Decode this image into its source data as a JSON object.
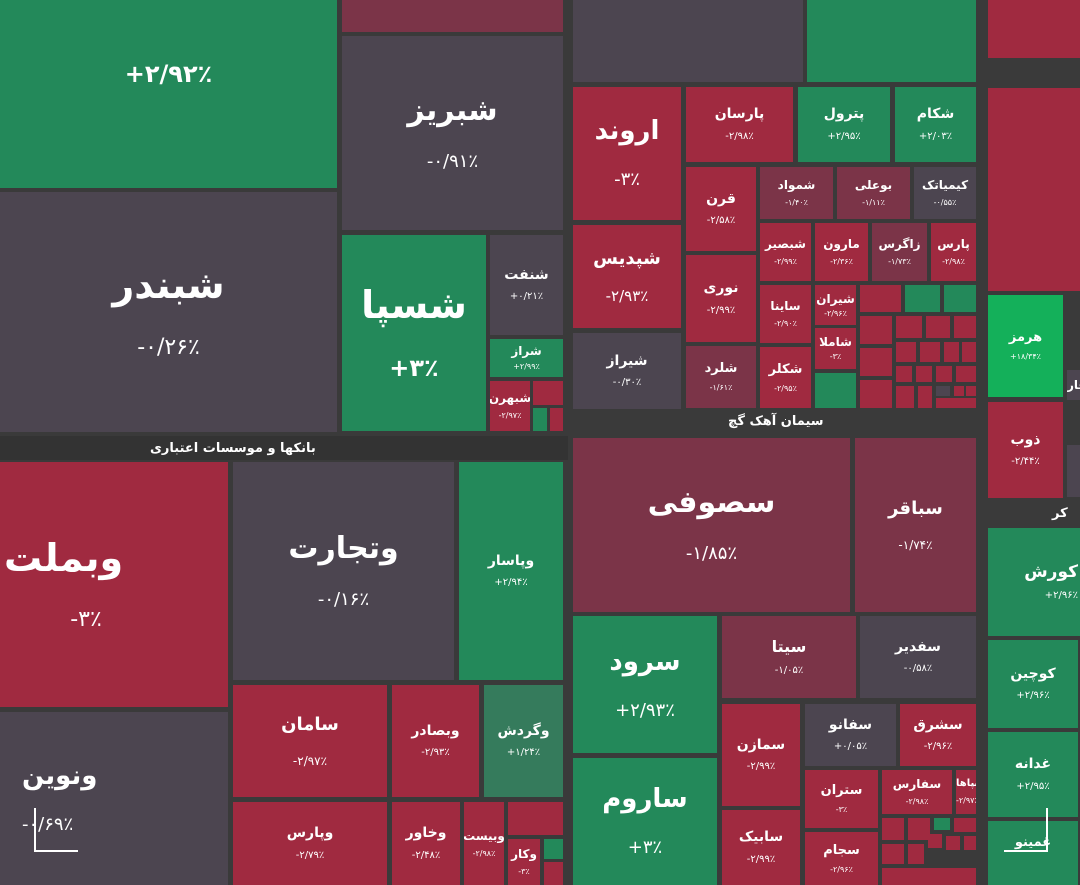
{
  "sectors": {
    "banks": "بانکها و موسسات اعتباری",
    "cement": "سیمان آهک گچ",
    "cropped_right": "کر"
  },
  "top_left_pct": "+۲/۹۲٪",
  "tiles": {
    "shabriz": {
      "name": "شبریز",
      "pct": "-۰/۹۱٪"
    },
    "shabandar": {
      "name": "شبندر",
      "pct": "-۰/۲۶٪"
    },
    "shespa": {
      "name": "شسپا",
      "pct": "+۳٪"
    },
    "shenaft": {
      "name": "شنفت",
      "pct": "+۰/۲۱٪"
    },
    "sheraz": {
      "name": "شراز",
      "pct": "+۲/۹۹٪"
    },
    "shebahran": {
      "name": "شبهرن",
      "pct": "-۲/۹۷٪"
    },
    "arvand": {
      "name": "اروند",
      "pct": "-۳٪"
    },
    "parsan": {
      "name": "پارسان",
      "pct": "-۲/۹۸٪"
    },
    "petrol": {
      "name": "پترول",
      "pct": "+۲/۹۵٪"
    },
    "shekam": {
      "name": "شکام",
      "pct": "+۲/۰۳٪"
    },
    "qorn": {
      "name": "قرن",
      "pct": "-۲/۵۸٪"
    },
    "shamvad": {
      "name": "شمواد",
      "pct": "-۱/۴۰٪"
    },
    "bouali": {
      "name": "بوعلی",
      "pct": "-۱/۱۱٪"
    },
    "kimiatak": {
      "name": "کیمیاتک",
      "pct": "-۰/۵۵٪"
    },
    "shepdis": {
      "name": "شپدیس",
      "pct": "-۲/۹۳٪"
    },
    "shebsir": {
      "name": "شبصیر",
      "pct": "-۲/۹۹٪"
    },
    "maroon": {
      "name": "مارون",
      "pct": "-۲/۳۶٪"
    },
    "zagros": {
      "name": "زاگرس",
      "pct": "-۱/۷۳٪"
    },
    "pars": {
      "name": "پارس",
      "pct": "-۲/۹۸٪"
    },
    "nouri": {
      "name": "نوری",
      "pct": "-۲/۹۹٪"
    },
    "saina": {
      "name": "ساینا",
      "pct": "-۲/۹۰٪"
    },
    "shiran": {
      "name": "شیران",
      "pct": "-۲/۹۶٪"
    },
    "shamla": {
      "name": "شاملا",
      "pct": "-۳٪"
    },
    "shiraz": {
      "name": "شیراز",
      "pct": "-۰/۳۰٪"
    },
    "sharad": {
      "name": "شلرد",
      "pct": "-۱/۶۱٪"
    },
    "shekalar": {
      "name": "شکلر",
      "pct": "-۲/۹۵٪"
    },
    "hormoz": {
      "name": "هرمز",
      "pct": "+۱۸/۳۴٪"
    },
    "zob": {
      "name": "ذوب",
      "pct": "-۲/۴۴٪"
    },
    "vabemellat": {
      "name": "وبملت",
      "pct": "-۳٪"
    },
    "vatejarat": {
      "name": "وتجارت",
      "pct": "-۰/۱۶٪"
    },
    "vapasar": {
      "name": "وپاسار",
      "pct": "+۲/۹۴٪"
    },
    "vanovin": {
      "name": "ونوین",
      "pct": "-۰/۶۹٪"
    },
    "saman": {
      "name": "سامان",
      "pct": "-۲/۹۷٪"
    },
    "vabsader": {
      "name": "وبصادر",
      "pct": "-۲/۹۳٪"
    },
    "vagardesh": {
      "name": "وگردش",
      "pct": "+۱/۲۴٪"
    },
    "vaparis": {
      "name": "وپارس",
      "pct": "-۲/۷۹٪"
    },
    "vakhavar": {
      "name": "وخاور",
      "pct": "-۲/۴۸٪"
    },
    "vabist": {
      "name": "وبیست",
      "pct": "-۲/۹۸٪"
    },
    "vakar": {
      "name": "وکار",
      "pct": "-۳٪"
    },
    "sufi": {
      "name": "سصوفی",
      "pct": "-۱/۸۵٪"
    },
    "sabaqer": {
      "name": "سباقر",
      "pct": "-۱/۷۴٪"
    },
    "sita": {
      "name": "سیتا",
      "pct": "-۱/۰۵٪"
    },
    "safdir": {
      "name": "سفدیر",
      "pct": "-۰/۵۸٪"
    },
    "sarud": {
      "name": "سرود",
      "pct": "+۲/۹۳٪"
    },
    "samazan": {
      "name": "سمازن",
      "pct": "-۲/۹۹٪"
    },
    "safanu": {
      "name": "سفانو",
      "pct": "+۰/۰۵٪"
    },
    "sashreq": {
      "name": "سشرق",
      "pct": "-۲/۹۶٪"
    },
    "saroum": {
      "name": "ساروم",
      "pct": "+۳٪"
    },
    "staran": {
      "name": "ستران",
      "pct": "-۳٪"
    },
    "safars": {
      "name": "سفارس",
      "pct": "-۲/۹۸٪"
    },
    "sapaha": {
      "name": "سپاها",
      "pct": "-۲/۹۷٪"
    },
    "sabik": {
      "name": "سابیک",
      "pct": "-۲/۹۹٪"
    },
    "sajam": {
      "name": "سجام",
      "pct": "-۲/۹۶٪"
    },
    "kakurash": {
      "name": "کورش",
      "pct": "+۲/۹۶٪"
    },
    "kochin": {
      "name": "کوچین",
      "pct": "+۲/۹۶٪"
    },
    "ghadane": {
      "name": "غدانه",
      "pct": "+۲/۹۵٪"
    },
    "ghamino": {
      "name": "غمینو",
      "pct": ""
    },
    "far": {
      "name": "فار",
      "pct": ""
    }
  },
  "colors": {
    "green": "#23895a",
    "red": "#a02a40",
    "neutral": "#4c4550",
    "muted_red": "#7b3448",
    "bright_green": "#14b05a"
  }
}
